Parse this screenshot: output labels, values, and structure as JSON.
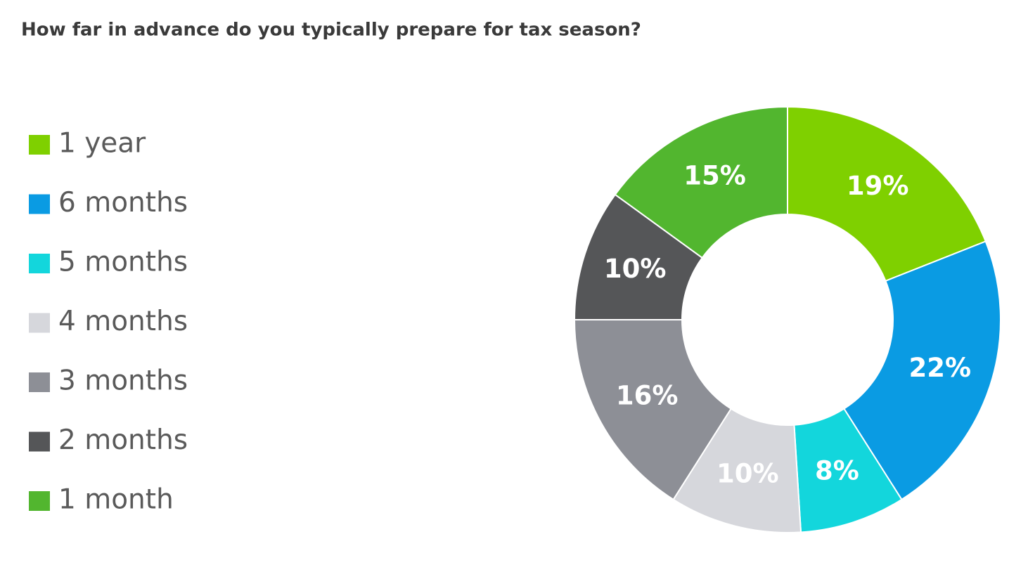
{
  "chart_data": {
    "type": "donut",
    "title": "How far in advance do you typically prepare for tax season?",
    "categories": [
      "1 year",
      "6 months",
      "5 months",
      "4 months",
      "3 months",
      "2 months",
      "1 month"
    ],
    "values": [
      19,
      22,
      8,
      10,
      16,
      10,
      15
    ],
    "value_labels": [
      "19%",
      "22%",
      "8%",
      "10%",
      "16%",
      "10%",
      "15%"
    ],
    "colors": [
      "#7fd000",
      "#0a9be3",
      "#13d6dc",
      "#d6d7dc",
      "#8d8f96",
      "#555658",
      "#52b62f"
    ],
    "legend": "left"
  }
}
